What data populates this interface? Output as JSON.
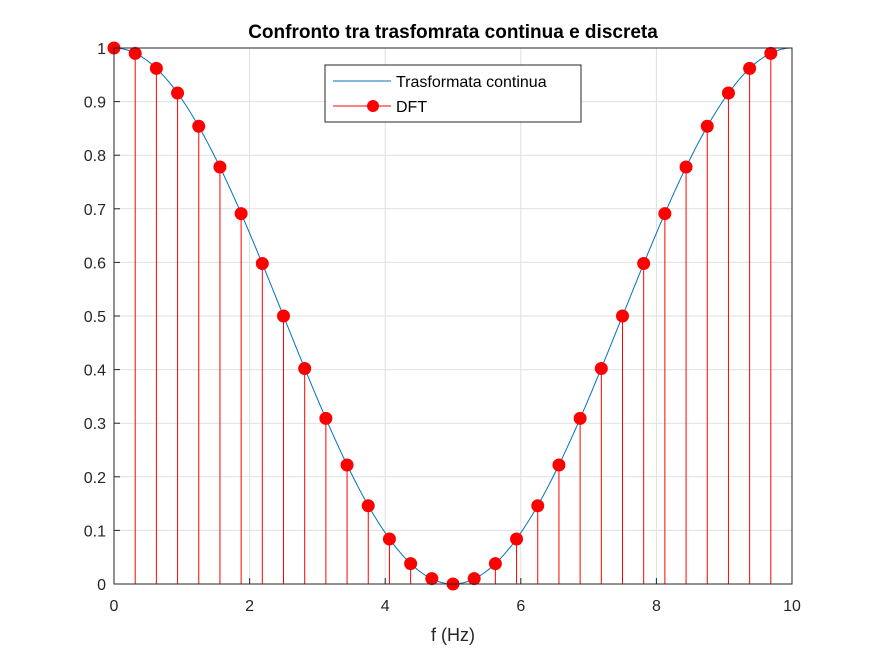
{
  "chart_data": {
    "type": "line",
    "title": "Confronto tra trasfomrata continua e discreta",
    "xlabel": "f (Hz)",
    "ylabel": "",
    "xlim": [
      0,
      10
    ],
    "ylim": [
      0,
      1
    ],
    "xticks": [
      0,
      2,
      4,
      6,
      8,
      10
    ],
    "xtick_labels": [
      "0",
      "2",
      "4",
      "6",
      "8",
      "10"
    ],
    "yticks": [
      0,
      0.1,
      0.2,
      0.3,
      0.4,
      0.5,
      0.6,
      0.7,
      0.8,
      0.9,
      1
    ],
    "ytick_labels": [
      "0",
      "0.1",
      "0.2",
      "0.3",
      "0.4",
      "0.5",
      "0.6",
      "0.7",
      "0.8",
      "0.9",
      "1"
    ],
    "grid": true,
    "legend_position": "top-center",
    "series": [
      {
        "name": "Trasformata continua",
        "type": "line",
        "color": "#0072BD",
        "function": "cos^2(pi*f/10)",
        "x_range": [
          0,
          10
        ]
      },
      {
        "name": "DFT",
        "type": "stem",
        "color": "#FF0000",
        "x": [
          0,
          0.3125,
          0.625,
          0.9375,
          1.25,
          1.5625,
          1.875,
          2.1875,
          2.5,
          2.8125,
          3.125,
          3.4375,
          3.75,
          4.0625,
          4.375,
          4.6875,
          5,
          5.3125,
          5.625,
          5.9375,
          6.25,
          6.5625,
          6.875,
          7.1875,
          7.5,
          7.8125,
          8.125,
          8.4375,
          8.75,
          9.0625,
          9.375,
          9.6875
        ],
        "y": [
          1,
          0.99,
          0.962,
          0.916,
          0.854,
          0.778,
          0.691,
          0.598,
          0.5,
          0.402,
          0.309,
          0.222,
          0.146,
          0.084,
          0.038,
          0.01,
          0,
          0.01,
          0.038,
          0.084,
          0.146,
          0.222,
          0.309,
          0.402,
          0.5,
          0.598,
          0.691,
          0.778,
          0.854,
          0.916,
          0.962,
          0.99
        ]
      }
    ]
  }
}
